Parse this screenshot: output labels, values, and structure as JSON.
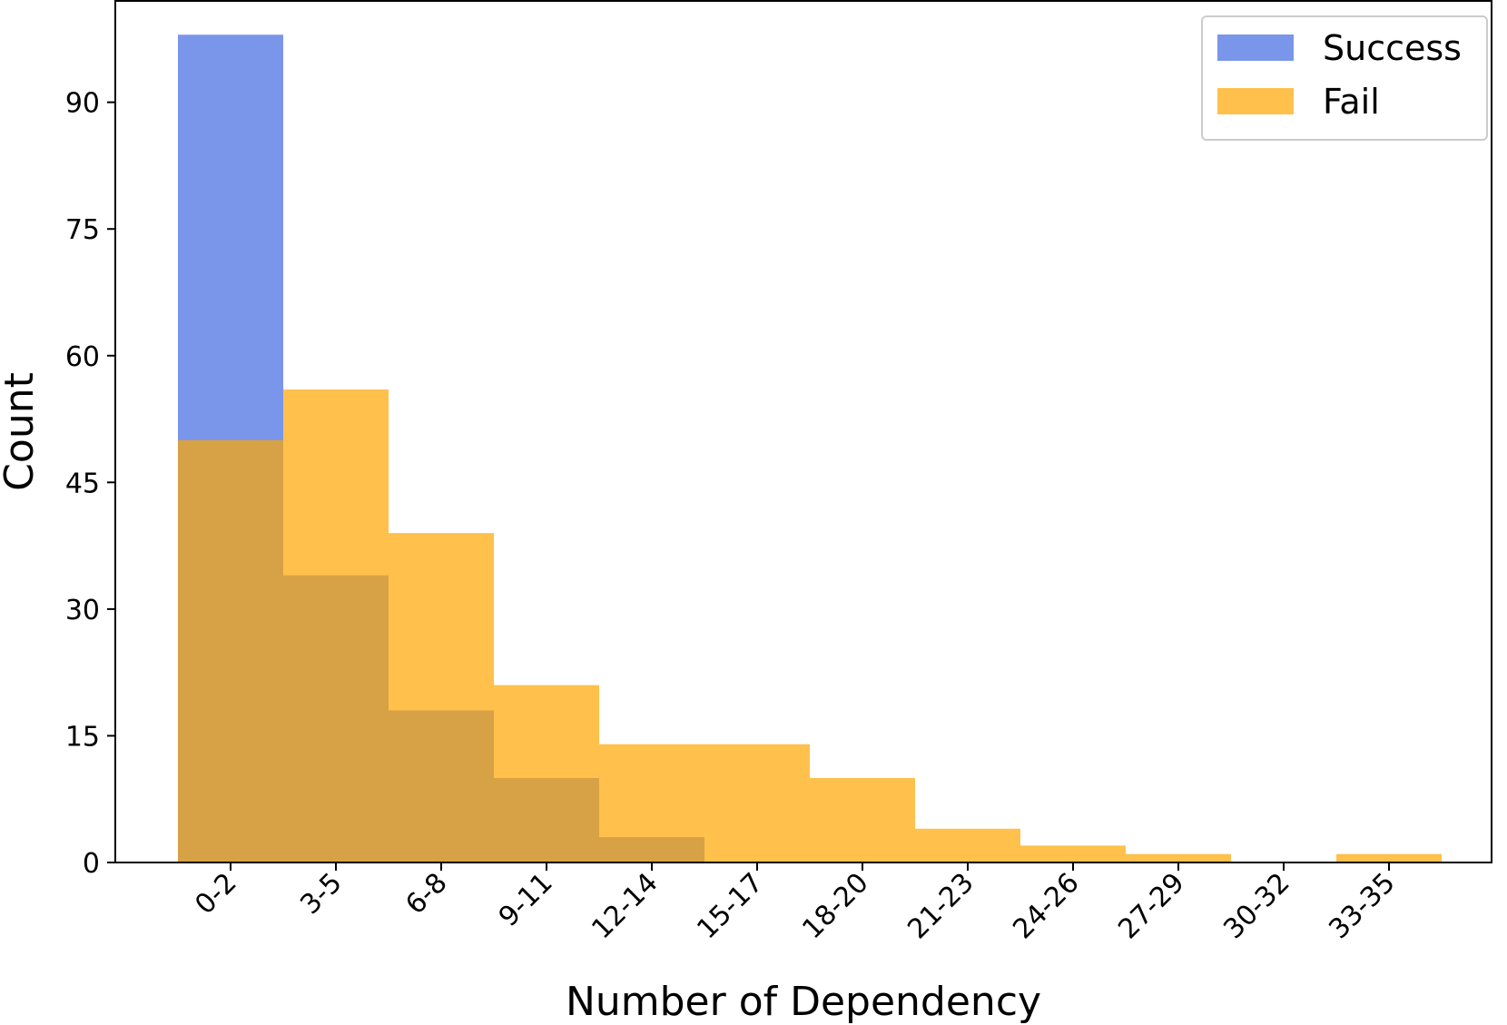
{
  "chart_data": {
    "type": "bar",
    "title": "",
    "xlabel": "Number of Dependency",
    "ylabel": "Count",
    "categories": [
      "0-2",
      "3-5",
      "6-8",
      "9-11",
      "12-14",
      "15-17",
      "18-20",
      "21-23",
      "24-26",
      "27-29",
      "30-32",
      "33-35"
    ],
    "ylim": [
      0,
      102
    ],
    "yticks": [
      0,
      15,
      30,
      45,
      60,
      75,
      90
    ],
    "grid": false,
    "legend_position": "upper right",
    "overlay": true,
    "series": [
      {
        "name": "Success",
        "color": "#4169e1",
        "opacity": 0.7,
        "values": [
          98,
          34,
          18,
          10,
          3,
          0,
          0,
          0,
          0,
          0,
          0,
          0
        ]
      },
      {
        "name": "Fail",
        "color": "#ffa500",
        "opacity": 0.7,
        "values": [
          50,
          56,
          39,
          21,
          14,
          14,
          10,
          4,
          2,
          1,
          0,
          1
        ]
      }
    ]
  }
}
